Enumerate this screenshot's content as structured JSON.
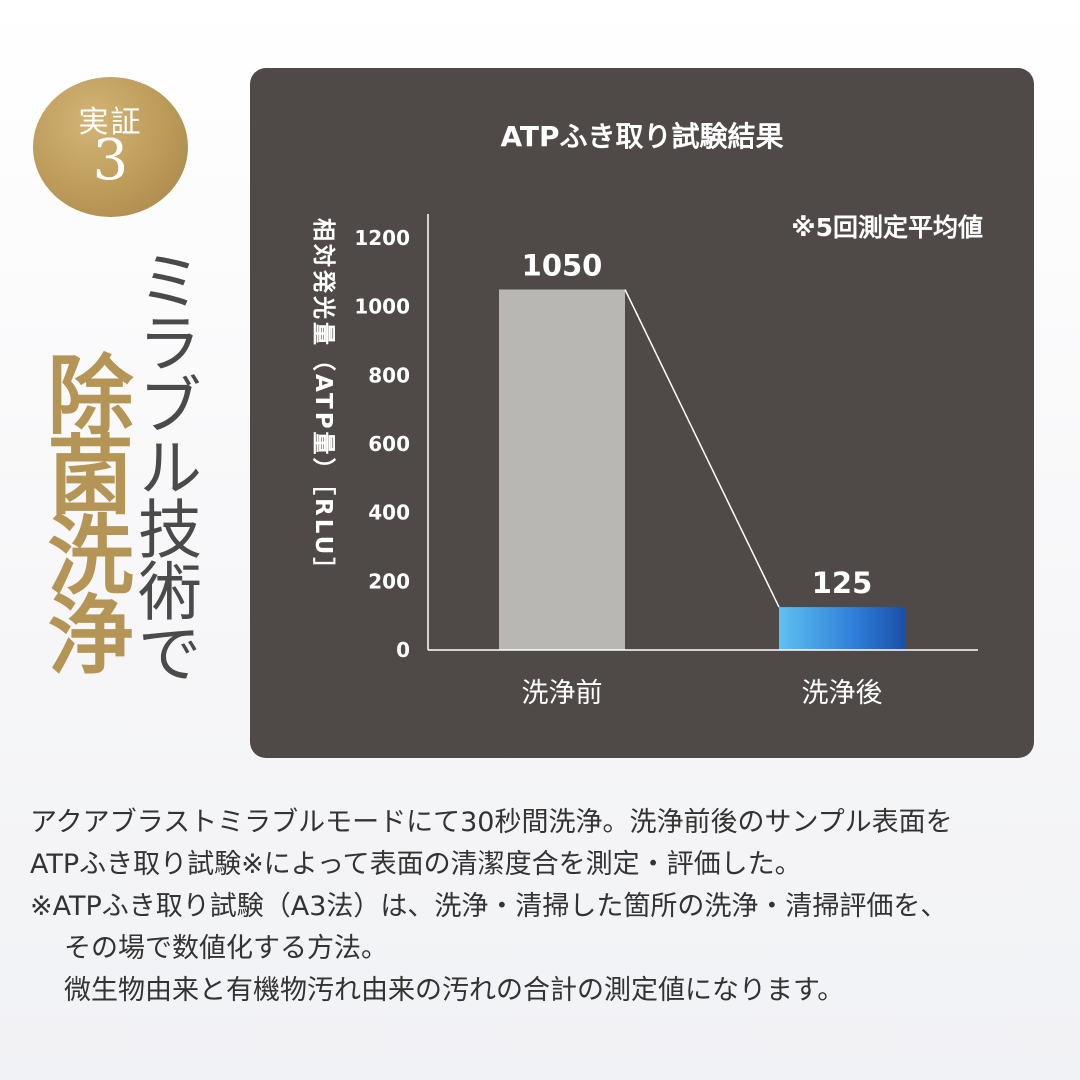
{
  "badge": {
    "line1": "実証",
    "line2": "3"
  },
  "headline": {
    "line1": "ミラブル技術で",
    "line2": "除菌洗浄"
  },
  "chart_data": {
    "type": "bar",
    "title": "ATPふき取り試験結果",
    "note": "※5回測定平均値",
    "ylabel": "相対発光量（ATP量）［RLU］",
    "ylim": [
      0,
      1200
    ],
    "yticks": [
      0,
      200,
      400,
      600,
      800,
      1000,
      1200
    ],
    "categories": [
      "洗浄前",
      "洗浄後"
    ],
    "values": [
      1050,
      125
    ],
    "data_labels": [
      "1050",
      "125"
    ],
    "bar_colors": [
      "#b9b7b4",
      "#2f7ed8"
    ],
    "grid": false
  },
  "description": {
    "line1": "アクアブラストミラブルモードにて30秒間洗浄。洗浄前後のサンプル表面を",
    "line2": "ATPふき取り試験※によって表面の清潔度合を測定・評価した。",
    "note_line1": "※ATPふき取り試験（A3法）は、洗浄・清掃した箇所の洗浄・清掃評価を、",
    "note_line2": "その場で数値化する方法。",
    "note_line3": "微生物由来と有機物汚れ由来の汚れの合計の測定値になります。"
  }
}
